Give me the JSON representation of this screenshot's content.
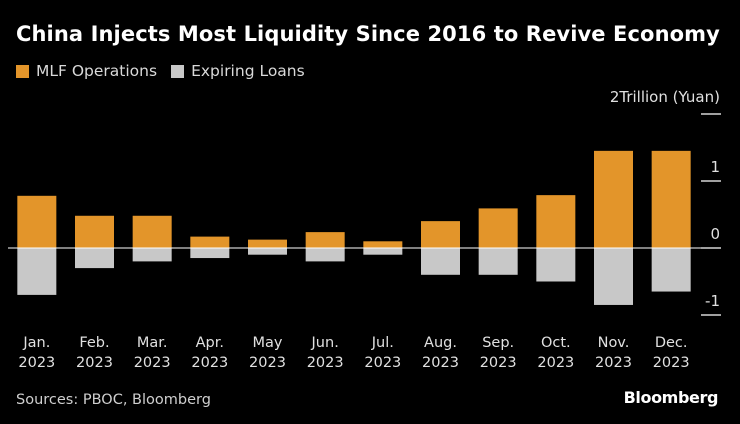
{
  "chart_data": {
    "type": "bar",
    "title": "China Injects Most Liquidity Since 2016 to Revive Economy",
    "categories": [
      "Jan.",
      "Feb.",
      "Mar.",
      "Apr.",
      "May",
      "Jun.",
      "Jul.",
      "Aug.",
      "Sep.",
      "Oct.",
      "Nov.",
      "Dec."
    ],
    "category_year": "2023",
    "series": [
      {
        "name": "MLF Operations",
        "color": "#e3952a",
        "values": [
          0.779,
          0.481,
          0.481,
          0.17,
          0.125,
          0.237,
          0.1,
          0.401,
          0.591,
          0.789,
          1.45,
          1.45
        ]
      },
      {
        "name": "Expiring Loans",
        "color": "#c8c8c8",
        "values": [
          -0.7,
          -0.3,
          -0.2,
          -0.15,
          -0.1,
          -0.2,
          -0.1,
          -0.4,
          -0.4,
          -0.5,
          -0.85,
          -0.65
        ]
      }
    ],
    "ylabel": "Trillion (Yuan)",
    "ylim": [
      -1,
      2
    ],
    "yticks": [
      "2",
      "1",
      "0",
      "-1"
    ],
    "ytick_values": [
      2,
      1,
      0,
      -1
    ],
    "legend_position": "top-left"
  },
  "source": "Sources: PBOC, Bloomberg",
  "brand": "Bloomberg"
}
